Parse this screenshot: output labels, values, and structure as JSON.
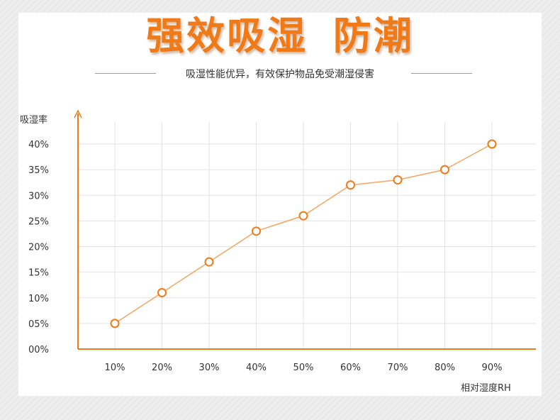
{
  "header": {
    "title": "强效吸湿 防潮",
    "subtitle": "吸湿性能优异，有效保护物品免受潮湿侵害"
  },
  "colors": {
    "accent": "#f07a18",
    "line": "#f3a660",
    "grid": "#e2e2e2"
  },
  "chart_data": {
    "type": "line",
    "categories": [
      "10%",
      "20%",
      "30%",
      "40%",
      "50%",
      "60%",
      "70%",
      "80%",
      "90%"
    ],
    "y_ticks": [
      "00%",
      "05%",
      "10%",
      "15%",
      "20%",
      "25%",
      "30%",
      "35%",
      "40%"
    ],
    "series": [
      {
        "values": [
          5,
          11,
          17,
          23,
          26,
          32,
          33,
          35,
          40
        ]
      }
    ],
    "xlabel": "相对湿度RH",
    "ylabel": "吸湿率",
    "ylim": [
      0,
      40
    ],
    "grid": true,
    "marker": "hollow-circle"
  }
}
